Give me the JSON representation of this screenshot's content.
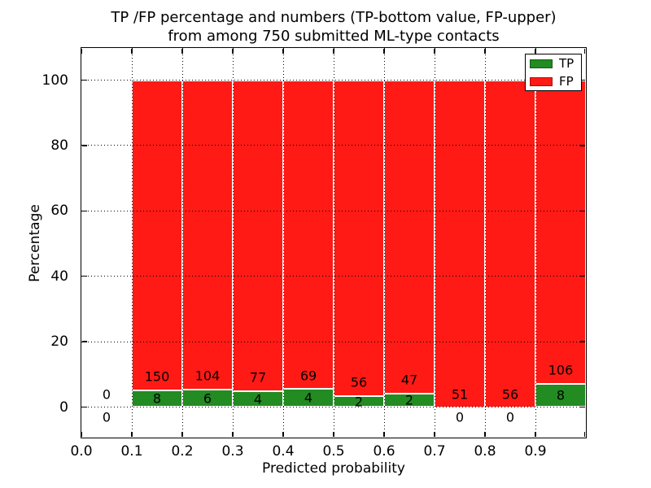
{
  "chart_data": {
    "type": "bar",
    "stacked": true,
    "title_line1": "TP /FP percentage and numbers (TP-bottom value, FP-upper)",
    "title_line2": "from among 750 submitted ML-type contacts",
    "xlabel": "Predicted probability",
    "ylabel": "Percentage",
    "x_ticks": [
      "0.0",
      "0.1",
      "0.2",
      "0.3",
      "0.4",
      "0.5",
      "0.6",
      "0.7",
      "0.8",
      "0.9"
    ],
    "y_ticks": [
      0,
      20,
      40,
      60,
      80,
      100
    ],
    "xlim": [
      0.0,
      1.0
    ],
    "ylim": [
      -9.3,
      109.8
    ],
    "bin_width": 0.1,
    "grid": true,
    "total_contacts": 750,
    "legend": {
      "position": "upper-right",
      "entries": [
        {
          "label": "TP",
          "color": "#228b22"
        },
        {
          "label": "FP",
          "color": "#ff1a15"
        }
      ]
    },
    "note": "Each bar is normalized to 100%; green TP segment at bottom, red FP on top; counts annotated",
    "bins": [
      {
        "x0": 0.0,
        "tp": 0,
        "fp": 0,
        "has_bar": false
      },
      {
        "x0": 0.1,
        "tp": 8,
        "fp": 150,
        "has_bar": true
      },
      {
        "x0": 0.2,
        "tp": 6,
        "fp": 104,
        "has_bar": true
      },
      {
        "x0": 0.3,
        "tp": 4,
        "fp": 77,
        "has_bar": true
      },
      {
        "x0": 0.4,
        "tp": 4,
        "fp": 69,
        "has_bar": true
      },
      {
        "x0": 0.5,
        "tp": 2,
        "fp": 56,
        "has_bar": true
      },
      {
        "x0": 0.6,
        "tp": 2,
        "fp": 47,
        "has_bar": true
      },
      {
        "x0": 0.7,
        "tp": 0,
        "fp": 51,
        "has_bar": true
      },
      {
        "x0": 0.8,
        "tp": 0,
        "fp": 56,
        "has_bar": true
      },
      {
        "x0": 0.9,
        "tp": 8,
        "fp": 106,
        "has_bar": true
      }
    ]
  }
}
